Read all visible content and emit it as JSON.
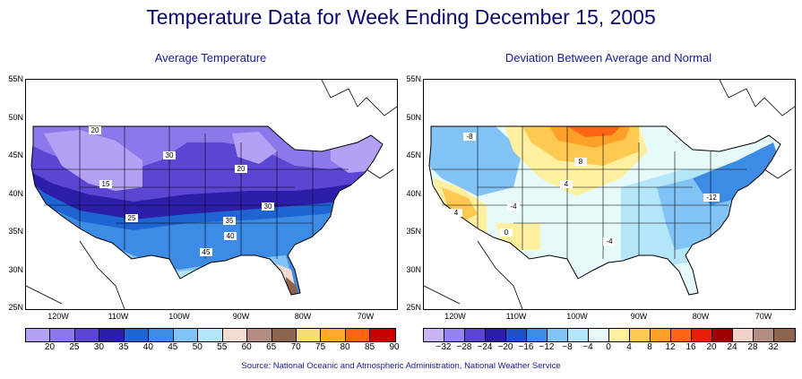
{
  "title": "Temperature Data for Week Ending December 15, 2005",
  "source": "Source:  National Oceanic and Atmospheric Administration, National Weather Service",
  "lat_labels": [
    "55N",
    "50N",
    "45N",
    "40N",
    "35N",
    "30N",
    "25N"
  ],
  "lon_labels": [
    "120W",
    "110W",
    "100W",
    "90W",
    "80W",
    "70W"
  ],
  "left_map": {
    "subtitle": "Average Temperature",
    "contour_labels": [
      "20",
      "30",
      "20",
      "15",
      "25",
      "35",
      "30",
      "40",
      "45"
    ],
    "legend": {
      "labels": [
        "20",
        "25",
        "30",
        "35",
        "40",
        "45",
        "50",
        "55",
        "60",
        "65",
        "70",
        "75",
        "80",
        "85",
        "90"
      ],
      "colors": [
        "#b4a0f5",
        "#8c78eb",
        "#5a46d2",
        "#2d1eaa",
        "#1e64d2",
        "#3c8ce6",
        "#82c3f5",
        "#b4e6fa",
        "#f5dcd2",
        "#b48c82",
        "#8c6450",
        "#f5dc78",
        "#ffaa28",
        "#ff6414",
        "#c80000"
      ]
    }
  },
  "right_map": {
    "subtitle": "Deviation Between Average and Normal",
    "contour_labels": [
      "-8",
      "8",
      "4",
      "-4",
      "4",
      "0",
      "-4",
      "-12"
    ],
    "legend": {
      "labels": [
        "−32",
        "−28",
        "−24",
        "−20",
        "−16",
        "−12",
        "−8",
        "−4",
        "0",
        "4",
        "8",
        "12",
        "16",
        "20",
        "24",
        "28",
        "32"
      ],
      "colors": [
        "#c8b4f5",
        "#9682eb",
        "#5a46d2",
        "#2d1eaa",
        "#1e50c8",
        "#3c8ce6",
        "#82c3f5",
        "#b4e6fa",
        "#e6fafa",
        "#fff0a0",
        "#ffc850",
        "#ffa028",
        "#ff6414",
        "#e61e0a",
        "#a00000",
        "#f0d2c8",
        "#b48c82",
        "#8c6450"
      ]
    }
  }
}
